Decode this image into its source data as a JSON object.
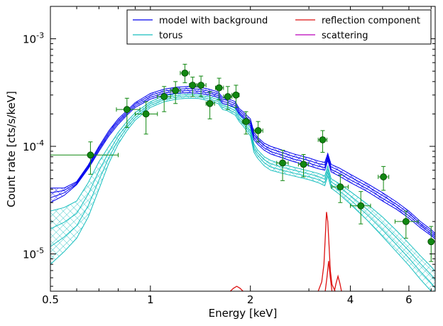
{
  "chart_data": {
    "type": "line",
    "xlabel": "Energy [keV]",
    "ylabel": "Count rate [cts/s/keV]",
    "xscale": "log",
    "yscale": "log",
    "xlim": [
      0.5,
      7.2
    ],
    "ylim": [
      4.5e-06,
      0.002
    ],
    "x_ticks": [
      {
        "value": 0.5,
        "label": "0.5"
      },
      {
        "value": 1,
        "label": "1"
      },
      {
        "value": 2,
        "label": "2"
      },
      {
        "value": 4,
        "label": "4"
      },
      {
        "value": 6,
        "label": "6"
      }
    ],
    "y_ticks": [
      {
        "value": 1e-05,
        "base": "10",
        "exp": "-5"
      },
      {
        "value": 0.0001,
        "base": "10",
        "exp": "-4"
      },
      {
        "value": 0.001,
        "base": "10",
        "exp": "-3"
      }
    ],
    "legend": {
      "position": "top-right",
      "columns": 2,
      "entries": [
        {
          "label": "model with background",
          "color": "#0000ee"
        },
        {
          "label": "reflection component",
          "color": "#dd1111"
        },
        {
          "label": "torus",
          "color": "#19bfbf"
        },
        {
          "label": "scattering",
          "color": "#bb00bb"
        }
      ]
    },
    "data_points": {
      "color": "#118811",
      "points": [
        {
          "x": 0.66,
          "y": 8.3e-05,
          "xerr": [
            0.5,
            0.8
          ],
          "yerr": [
            5.5e-05,
            0.00011
          ]
        },
        {
          "x": 0.85,
          "y": 0.00022,
          "xerr": [
            0.79,
            0.93
          ],
          "yerr": [
            0.00015,
            0.00028
          ]
        },
        {
          "x": 0.97,
          "y": 0.0002,
          "xerr": [
            0.9,
            1.05
          ],
          "yerr": [
            0.00013,
            0.00026
          ]
        },
        {
          "x": 1.1,
          "y": 0.00029,
          "xerr": [
            1.05,
            1.15
          ],
          "yerr": [
            0.00021,
            0.00036
          ]
        },
        {
          "x": 1.19,
          "y": 0.00033,
          "xerr": [
            1.15,
            1.23
          ],
          "yerr": [
            0.00025,
            0.0004
          ]
        },
        {
          "x": 1.27,
          "y": 0.00048,
          "xerr": [
            1.23,
            1.31
          ],
          "yerr": [
            0.00039,
            0.00058
          ]
        },
        {
          "x": 1.34,
          "y": 0.00037,
          "xerr": [
            1.31,
            1.38
          ],
          "yerr": [
            0.00029,
            0.00044
          ]
        },
        {
          "x": 1.42,
          "y": 0.00037,
          "xerr": [
            1.38,
            1.47
          ],
          "yerr": [
            0.00029,
            0.00045
          ]
        },
        {
          "x": 1.51,
          "y": 0.00025,
          "xerr": [
            1.47,
            1.56
          ],
          "yerr": [
            0.00018,
            0.00032
          ]
        },
        {
          "x": 1.61,
          "y": 0.00035,
          "xerr": [
            1.57,
            1.66
          ],
          "yerr": [
            0.00027,
            0.00043
          ]
        },
        {
          "x": 1.71,
          "y": 0.00029,
          "xerr": [
            1.66,
            1.76
          ],
          "yerr": [
            0.00022,
            0.00036
          ]
        },
        {
          "x": 1.81,
          "y": 0.0003,
          "xerr": [
            1.76,
            1.85
          ],
          "yerr": [
            0.00023,
            0.00037
          ]
        },
        {
          "x": 1.94,
          "y": 0.00017,
          "xerr": [
            1.89,
            1.99
          ],
          "yerr": [
            0.00013,
            0.00021
          ]
        },
        {
          "x": 2.11,
          "y": 0.00014,
          "xerr": [
            2.05,
            2.18
          ],
          "yerr": [
            0.00011,
            0.00017
          ]
        },
        {
          "x": 2.5,
          "y": 7e-05,
          "xerr": [
            2.4,
            2.6
          ],
          "yerr": [
            4.8e-05,
            9.2e-05
          ]
        },
        {
          "x": 2.89,
          "y": 6.8e-05,
          "xerr": [
            2.79,
            2.99
          ],
          "yerr": [
            5.2e-05,
            8.4e-05
          ]
        },
        {
          "x": 3.3,
          "y": 0.000115,
          "xerr": [
            3.2,
            3.4
          ],
          "yerr": [
            8.8e-05,
            0.00014
          ]
        },
        {
          "x": 3.73,
          "y": 4.2e-05,
          "xerr": [
            3.51,
            3.94
          ],
          "yerr": [
            3e-05,
            5.4e-05
          ]
        },
        {
          "x": 4.3,
          "y": 2.8e-05,
          "xerr": [
            4.0,
            4.6
          ],
          "yerr": [
            1.9e-05,
            3.8e-05
          ]
        },
        {
          "x": 5.03,
          "y": 5.2e-05,
          "xerr": [
            4.85,
            5.22
          ],
          "yerr": [
            3.9e-05,
            6.5e-05
          ]
        },
        {
          "x": 5.88,
          "y": 2e-05,
          "xerr": [
            5.45,
            6.4
          ],
          "yerr": [
            1.4e-05,
            2.5e-05
          ]
        },
        {
          "x": 7.0,
          "y": 1.3e-05,
          "xerr": [
            6.9,
            7.2
          ],
          "yerr": [
            8.5e-06,
            1.8e-05
          ]
        }
      ]
    },
    "series": [
      {
        "name": "model with background",
        "color": "#0000ee",
        "band": true,
        "x": [
          0.5,
          0.55,
          0.6,
          0.65,
          0.7,
          0.75,
          0.8,
          0.85,
          0.9,
          1.0,
          1.1,
          1.2,
          1.3,
          1.4,
          1.5,
          1.6,
          1.65,
          1.7,
          1.8,
          1.85,
          1.9,
          2.0,
          2.05,
          2.1,
          2.2,
          2.3,
          2.5,
          2.7,
          3.0,
          3.2,
          3.35,
          3.42,
          3.5,
          3.7,
          4.0,
          4.5,
          5.0,
          5.5,
          6.0,
          6.5,
          7.0,
          7.2
        ],
        "lower": [
          3e-05,
          3.5e-05,
          4.4e-05,
          6.2e-05,
          9e-05,
          0.000125,
          0.00016,
          0.000195,
          0.00023,
          0.000275,
          0.0003,
          0.000312,
          0.000315,
          0.000312,
          0.0003,
          0.000285,
          0.00025,
          0.000245,
          0.00023,
          0.0002,
          0.000185,
          0.000155,
          0.000115,
          0.000105,
          9.2e-05,
          8.5e-05,
          7.8e-05,
          7.2e-05,
          6.6e-05,
          6.2e-05,
          6e-05,
          7.4e-05,
          5.8e-05,
          5.3e-05,
          4.6e-05,
          3.8e-05,
          3.1e-05,
          2.6e-05,
          2.15e-05,
          1.75e-05,
          1.48e-05,
          1.38e-05
        ],
        "upper": [
          4.1e-05,
          4.1e-05,
          4.7e-05,
          6.7e-05,
          0.0001,
          0.00014,
          0.00018,
          0.000215,
          0.000255,
          0.00031,
          0.00034,
          0.000355,
          0.00036,
          0.000355,
          0.00034,
          0.00032,
          0.000285,
          0.00028,
          0.00026,
          0.000225,
          0.00021,
          0.00018,
          0.000135,
          0.000122,
          0.000107,
          0.0001,
          9.2e-05,
          8.5e-05,
          7.8e-05,
          7.3e-05,
          7.1e-05,
          8.6e-05,
          6.8e-05,
          6.3e-05,
          5.5e-05,
          4.5e-05,
          3.7e-05,
          3.05e-05,
          2.5e-05,
          2e-05,
          1.68e-05,
          1.55e-05
        ]
      },
      {
        "name": "torus",
        "color": "#19bfbf",
        "band": true,
        "x": [
          0.5,
          0.55,
          0.6,
          0.65,
          0.7,
          0.75,
          0.8,
          0.85,
          0.9,
          1.0,
          1.1,
          1.2,
          1.3,
          1.4,
          1.5,
          1.6,
          1.65,
          1.7,
          1.8,
          1.85,
          1.9,
          2.0,
          2.05,
          2.1,
          2.2,
          2.3,
          2.5,
          2.7,
          3.0,
          3.2,
          3.35,
          3.42,
          3.5,
          3.7,
          4.0,
          4.5,
          5.0,
          5.5,
          6.0,
          6.5,
          7.0,
          7.2
        ],
        "lower": [
          8e-06,
          1.05e-05,
          1.4e-05,
          2.2e-05,
          4e-05,
          7e-05,
          0.000105,
          0.00014,
          0.000175,
          0.00023,
          0.00026,
          0.000275,
          0.00028,
          0.000278,
          0.000265,
          0.00025,
          0.00022,
          0.000215,
          0.000195,
          0.00017,
          0.000155,
          0.000125,
          8.8e-05,
          7.8e-05,
          6.6e-05,
          6e-05,
          5.6e-05,
          5.3e-05,
          4.9e-05,
          4.6e-05,
          4.3e-05,
          5.3e-05,
          4.1e-05,
          3.6e-05,
          2.9e-05,
          2.05e-05,
          1.45e-05,
          1.05e-05,
          7.8e-06,
          5.8e-06,
          4.5e-06,
          4e-06
        ],
        "upper": [
          2.5e-05,
          2.7e-05,
          3.1e-05,
          4.6e-05,
          7.2e-05,
          0.0001,
          0.000135,
          0.00017,
          0.000205,
          0.00026,
          0.000295,
          0.00031,
          0.000315,
          0.000312,
          0.0003,
          0.000285,
          0.00025,
          0.000245,
          0.000225,
          0.000195,
          0.00018,
          0.000148,
          0.000105,
          9.3e-05,
          8e-05,
          7.4e-05,
          6.8e-05,
          6.4e-05,
          5.9e-05,
          5.6e-05,
          5.3e-05,
          6.6e-05,
          5e-05,
          4.5e-05,
          3.8e-05,
          2.9e-05,
          2.2e-05,
          1.65e-05,
          1.25e-05,
          9.6e-06,
          7.6e-06,
          6.9e-06
        ]
      },
      {
        "name": "reflection component",
        "color": "#dd1111",
        "band": false,
        "segments": [
          {
            "x": [
              1.74,
              1.78,
              1.82,
              1.86,
              1.9
            ],
            "y": [
              4.5e-06,
              4.8e-06,
              5e-06,
              4.8e-06,
              4.5e-06
            ]
          },
          {
            "x": [
              3.2,
              3.28,
              3.33,
              3.36,
              3.39,
              3.42,
              3.45,
              3.48,
              3.52,
              3.6
            ],
            "y": [
              4.5e-06,
              5.5e-06,
              8e-06,
              1.4e-05,
              2.45e-05,
              2e-05,
              1.2e-05,
              7e-06,
              5.2e-06,
              4.5e-06
            ]
          },
          {
            "x": [
              3.36,
              3.4,
              3.44,
              3.48,
              3.52
            ],
            "y": [
              4.5e-06,
              6e-06,
              8.6e-06,
              6e-06,
              4.5e-06
            ]
          },
          {
            "x": [
              3.58,
              3.62,
              3.67,
              3.72,
              3.76
            ],
            "y": [
              4.5e-06,
              5.3e-06,
              6.2e-06,
              5.3e-06,
              4.5e-06
            ]
          }
        ]
      }
    ]
  }
}
